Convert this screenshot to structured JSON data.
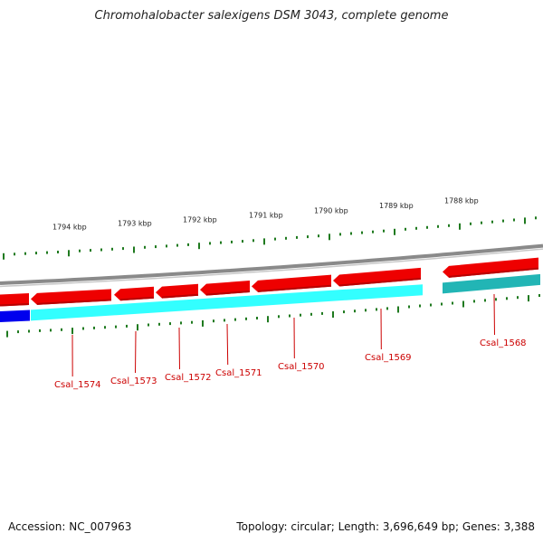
{
  "title": "Chromohalobacter salexigens DSM 3043, complete genome",
  "footer": {
    "accession": "Accession: NC_007963",
    "topology": "Topology: circular; Length: 3,696,649 bp; Genes: 3,388"
  },
  "scale_labels": [
    "1794 kbp",
    "1793 kbp",
    "1792 kbp",
    "1791 kbp",
    "1790 kbp",
    "1789 kbp",
    "1788 kbp"
  ],
  "gene_labels": [
    "Csal_1574",
    "Csal_1573",
    "Csal_1572",
    "Csal_1571",
    "Csal_1570",
    "Csal_1569",
    "Csal_1568"
  ],
  "colors": {
    "backbone": "#8a8a8a",
    "cds": "#ee0000",
    "cds_dark": "#b80000",
    "orf": "#33ffff",
    "orf_shifted": "#22b5b5",
    "orf_blue": "#0000ee",
    "ticks": "#1f7a1f",
    "label_line": "#cc0000"
  }
}
